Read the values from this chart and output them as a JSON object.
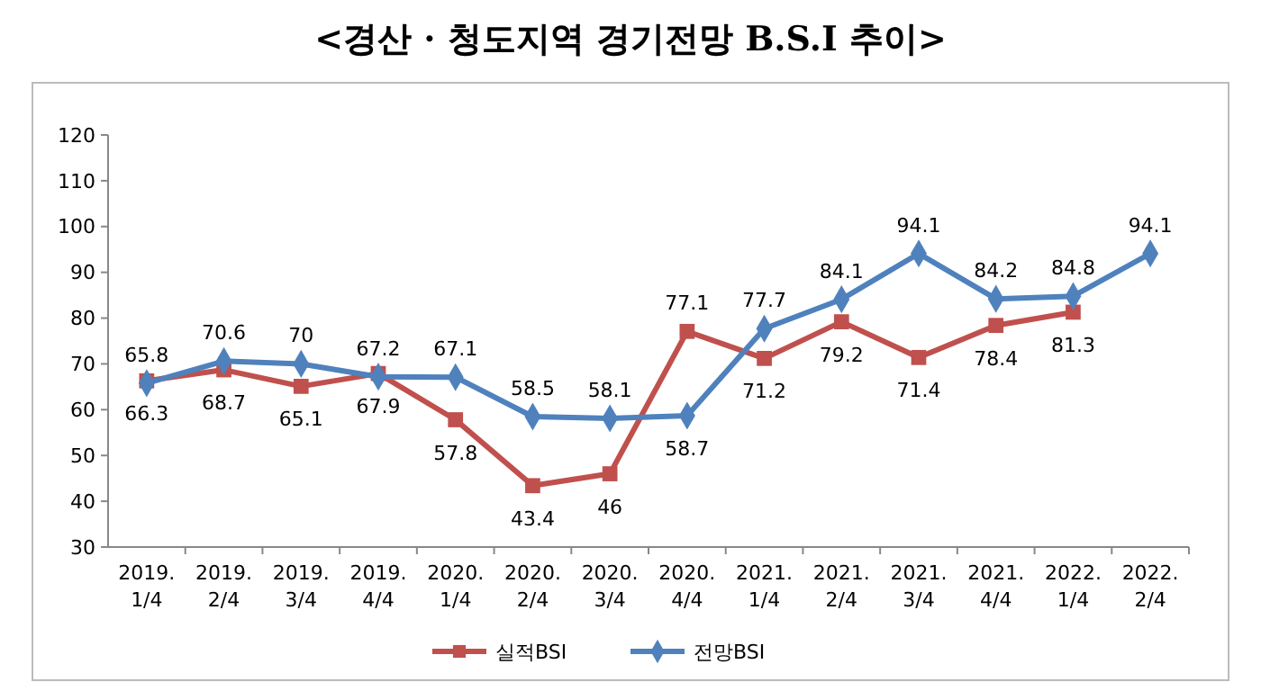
{
  "chart_data": {
    "type": "line",
    "title": "<경산 · 청도지역 경기전망 B.S.I 추이>",
    "categories": [
      "2019. 1/4",
      "2019. 2/4",
      "2019. 3/4",
      "2019. 4/4",
      "2020. 1/4",
      "2020. 2/4",
      "2020. 3/4",
      "2020. 4/4",
      "2021. 1/4",
      "2021. 2/4",
      "2021. 3/4",
      "2021. 4/4",
      "2022. 1/4",
      "2022. 2/4"
    ],
    "series": [
      {
        "name": "실적BSI",
        "color": "#c0504d",
        "marker": "square",
        "values": [
          66.3,
          68.7,
          65.1,
          67.9,
          57.8,
          43.4,
          46,
          77.1,
          71.2,
          79.2,
          71.4,
          78.4,
          81.3,
          null
        ]
      },
      {
        "name": "전망BSI",
        "color": "#4f81bd",
        "marker": "diamond",
        "values": [
          65.8,
          70.6,
          70,
          67.2,
          67.1,
          58.5,
          58.1,
          58.7,
          77.7,
          84.1,
          94.1,
          84.2,
          84.8,
          94.1
        ]
      }
    ],
    "ylim": [
      30,
      120
    ],
    "yticks": [
      30,
      40,
      50,
      60,
      70,
      80,
      90,
      100,
      110,
      120
    ],
    "grid": false,
    "legend": "bottom",
    "data_labels": true
  }
}
